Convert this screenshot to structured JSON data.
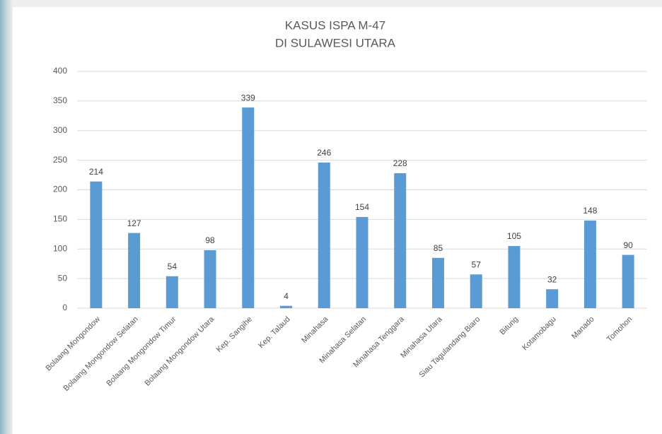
{
  "chart_data": {
    "type": "bar",
    "title": [
      "KASUS ISPA M-47",
      "DI SULAWESI UTARA"
    ],
    "categories": [
      "Bolaang Mongondow",
      "Bolaang Mongondow Selatan",
      "Bolaang Mongondow Timur",
      "Bolaang Mongondow Utara",
      "Kep. Sangihe",
      "Kep. Talaud",
      "Minahasa",
      "Minahasa Selatan",
      "Minahasa Tenggara",
      "Minahasa Utara",
      "Siau Tagulandang Biaro",
      "Bitung",
      "Kotamobagu",
      "Manado",
      "Tomohon"
    ],
    "values": [
      214,
      127,
      54,
      98,
      339,
      4,
      246,
      154,
      228,
      85,
      57,
      105,
      32,
      148,
      90
    ],
    "color": "#5b9bd5",
    "ylim": [
      0,
      400
    ],
    "yticks": [
      0,
      50,
      100,
      150,
      200,
      250,
      300,
      350,
      400
    ],
    "grid": true
  }
}
